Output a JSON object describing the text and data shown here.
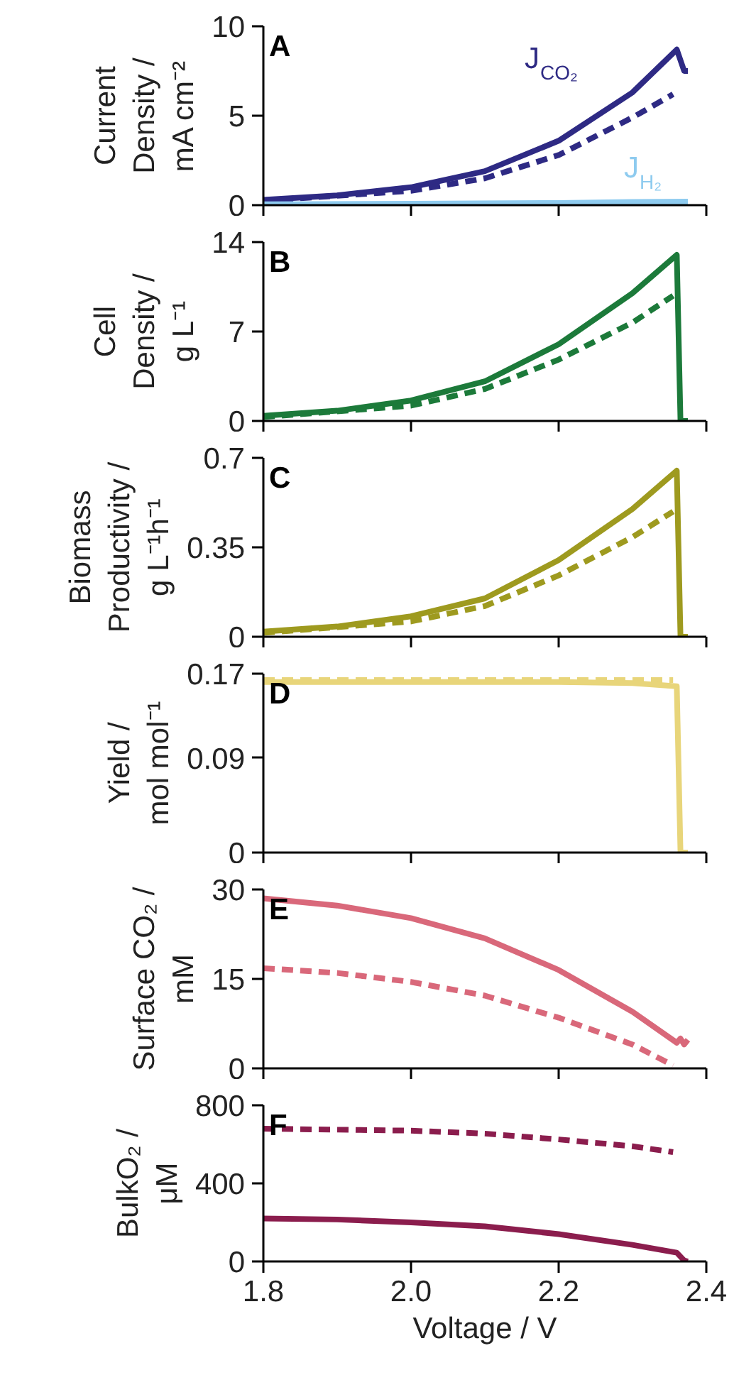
{
  "chart_data": [
    {
      "type": "line",
      "ylabel": "Current\nDensity /\nmA cm⁻²",
      "annotations": [
        "A"
      ],
      "xlim": [
        1.8,
        2.4
      ],
      "xticks": [
        1.8,
        2.0,
        2.2,
        2.4
      ],
      "ylim": [
        0,
        10
      ],
      "yticks": [
        0,
        5,
        10
      ],
      "tick_labels": "y",
      "series": [
        {
          "name": "J$_{CO₂}$",
          "color": "#2e2a84",
          "line_style": "solid",
          "x": [
            1.8,
            1.9,
            2.0,
            2.1,
            2.2,
            2.3,
            2.36,
            2.37,
            2.375
          ],
          "values": [
            0.3,
            0.55,
            1.0,
            1.9,
            3.6,
            6.3,
            8.7,
            7.5,
            7.5
          ]
        },
        {
          "color": "#2e2a84",
          "line_style": "dashed",
          "x": [
            1.8,
            2.0,
            2.1,
            2.2,
            2.3,
            2.355
          ],
          "values": [
            0.25,
            0.8,
            1.5,
            2.8,
            4.9,
            6.2
          ]
        },
        {
          "name": "J$_{H₂}$",
          "color": "#8ecbef",
          "line_style": "solid",
          "x": [
            1.8,
            2.0,
            2.2,
            2.3,
            2.375
          ],
          "values": [
            0.05,
            0.08,
            0.12,
            0.18,
            0.2
          ]
        }
      ]
    },
    {
      "type": "line",
      "ylabel": "Cell\nDensity /\ng L⁻¹",
      "annotations": [
        "B"
      ],
      "xlim": [
        1.8,
        2.4
      ],
      "xticks": [
        1.8,
        2.0,
        2.2,
        2.4
      ],
      "ylim": [
        0,
        14
      ],
      "yticks": [
        0,
        7,
        14
      ],
      "tick_labels": "y",
      "series": [
        {
          "color": "#1c7a3a",
          "line_style": "solid",
          "x": [
            1.8,
            1.9,
            2.0,
            2.1,
            2.2,
            2.3,
            2.36,
            2.365,
            2.375
          ],
          "values": [
            0.4,
            0.8,
            1.6,
            3.1,
            6.0,
            10.0,
            13.0,
            0,
            0
          ]
        },
        {
          "color": "#1c7a3a",
          "line_style": "dashed",
          "x": [
            1.8,
            2.0,
            2.1,
            2.2,
            2.3,
            2.355
          ],
          "values": [
            0.3,
            1.2,
            2.5,
            4.8,
            7.7,
            9.8
          ]
        }
      ]
    },
    {
      "type": "line",
      "ylabel": "Biomass\nProductivity /\ng L⁻¹h⁻¹",
      "annotations": [
        "C"
      ],
      "xlim": [
        1.8,
        2.4
      ],
      "xticks": [
        1.8,
        2.0,
        2.2,
        2.4
      ],
      "ylim": [
        0,
        0.7
      ],
      "yticks": [
        0,
        0.35,
        0.7
      ],
      "tick_labels": "y",
      "series": [
        {
          "color": "#9e9a1f",
          "line_style": "solid",
          "x": [
            1.8,
            1.9,
            2.0,
            2.1,
            2.2,
            2.3,
            2.36,
            2.365,
            2.375
          ],
          "values": [
            0.02,
            0.04,
            0.08,
            0.15,
            0.3,
            0.5,
            0.65,
            0,
            0
          ]
        },
        {
          "color": "#9e9a1f",
          "line_style": "dashed",
          "x": [
            1.8,
            2.0,
            2.1,
            2.2,
            2.3,
            2.355
          ],
          "values": [
            0.015,
            0.06,
            0.12,
            0.24,
            0.39,
            0.49
          ]
        }
      ]
    },
    {
      "type": "line",
      "ylabel": "Yield /\nmol mol⁻¹",
      "annotations": [
        "D"
      ],
      "xlim": [
        1.8,
        2.4
      ],
      "xticks": [
        1.8,
        2.0,
        2.2,
        2.4
      ],
      "ylim": [
        0,
        0.17
      ],
      "yticks": [
        0,
        0.09,
        0.17
      ],
      "tick_labels": "y",
      "series": [
        {
          "color": "#e8d57a",
          "line_style": "dashed",
          "x": [
            1.8,
            2.0,
            2.2,
            2.355
          ],
          "values": [
            0.164,
            0.164,
            0.164,
            0.164
          ]
        },
        {
          "color": "#e8d57a",
          "line_style": "solid",
          "x": [
            1.8,
            2.0,
            2.2,
            2.3,
            2.36,
            2.365,
            2.375
          ],
          "values": [
            0.162,
            0.162,
            0.162,
            0.161,
            0.158,
            0,
            0
          ]
        }
      ]
    },
    {
      "type": "line",
      "ylabel": "Surface CO₂ /\nmM",
      "annotations": [
        "E"
      ],
      "xlim": [
        1.8,
        2.4
      ],
      "xticks": [
        1.8,
        2.0,
        2.2,
        2.4
      ],
      "ylim": [
        0,
        30
      ],
      "yticks": [
        0,
        15,
        30
      ],
      "tick_labels": "y",
      "series": [
        {
          "color": "#d9687a",
          "line_style": "solid",
          "x": [
            1.8,
            1.9,
            2.0,
            2.1,
            2.2,
            2.3,
            2.36,
            2.365,
            2.37,
            2.375
          ],
          "values": [
            28.5,
            27.3,
            25.2,
            21.8,
            16.5,
            9.5,
            4.3,
            5.0,
            4.0,
            4.8
          ]
        },
        {
          "color": "#d9687a",
          "line_style": "dashed",
          "x": [
            1.8,
            1.9,
            2.0,
            2.1,
            2.2,
            2.3,
            2.355
          ],
          "values": [
            16.8,
            16.0,
            14.5,
            12.2,
            8.5,
            4.0,
            0.5
          ]
        }
      ]
    },
    {
      "type": "line",
      "ylabel": "BulkO₂ /\nμM",
      "xlabel": "Voltage / V",
      "annotations": [
        "F"
      ],
      "xlim": [
        1.8,
        2.4
      ],
      "xticks": [
        {
          "value": 1.8,
          "label": "1.8"
        },
        {
          "value": 2.0,
          "label": "2.0"
        },
        {
          "value": 2.2,
          "label": "2.2"
        },
        {
          "value": 2.4,
          "label": "2.4"
        }
      ],
      "ylim": [
        0,
        800
      ],
      "yticks": [
        0,
        400,
        800
      ],
      "series": [
        {
          "color": "#8b1d4d",
          "line_style": "dashed",
          "x": [
            1.8,
            2.0,
            2.1,
            2.2,
            2.3,
            2.355
          ],
          "values": [
            680,
            670,
            655,
            625,
            590,
            560
          ]
        },
        {
          "color": "#8b1d4d",
          "line_style": "solid",
          "x": [
            1.8,
            1.9,
            2.0,
            2.1,
            2.2,
            2.3,
            2.36,
            2.37,
            2.375
          ],
          "values": [
            220,
            215,
            200,
            180,
            140,
            85,
            45,
            5,
            0
          ]
        }
      ]
    }
  ]
}
